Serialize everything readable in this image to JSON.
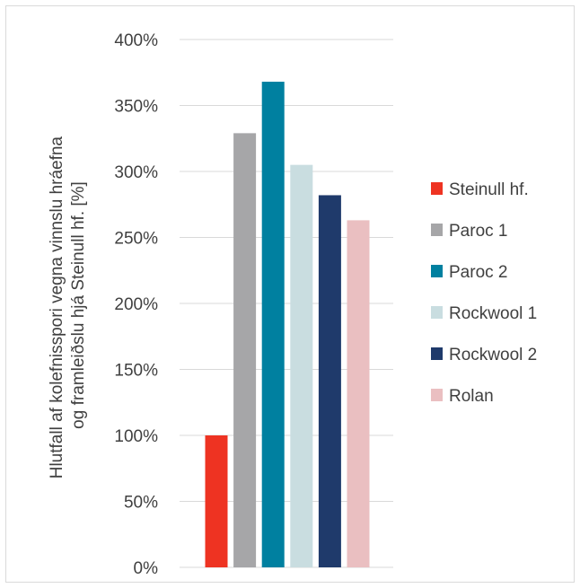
{
  "chart_data": {
    "type": "bar",
    "title": "",
    "xlabel": "",
    "ylabel_lines": [
      "Hlutfall af kolefnisspori vegna vinnslu hráefna",
      "og framleiðslu hjá Steinull hf. [%]"
    ],
    "ylim": [
      0,
      400
    ],
    "yticks": [
      0,
      50,
      100,
      150,
      200,
      250,
      300,
      350,
      400
    ],
    "ytick_labels": [
      "0%",
      "50%",
      "100%",
      "150%",
      "200%",
      "250%",
      "300%",
      "350%",
      "400%"
    ],
    "grid": true,
    "legend_position": "right",
    "series": [
      {
        "name": "Steinull hf.",
        "value": 100,
        "color": "#EE3322"
      },
      {
        "name": "Paroc 1",
        "value": 329,
        "color": "#A6A6A8"
      },
      {
        "name": "Paroc 2",
        "value": 368,
        "color": "#0080A0"
      },
      {
        "name": "Rockwool 1",
        "value": 305,
        "color": "#C9DDE0"
      },
      {
        "name": "Rockwool 2",
        "value": 282,
        "color": "#1F3A6B"
      },
      {
        "name": "Rolan",
        "value": 263,
        "color": "#EABFC1"
      }
    ]
  }
}
